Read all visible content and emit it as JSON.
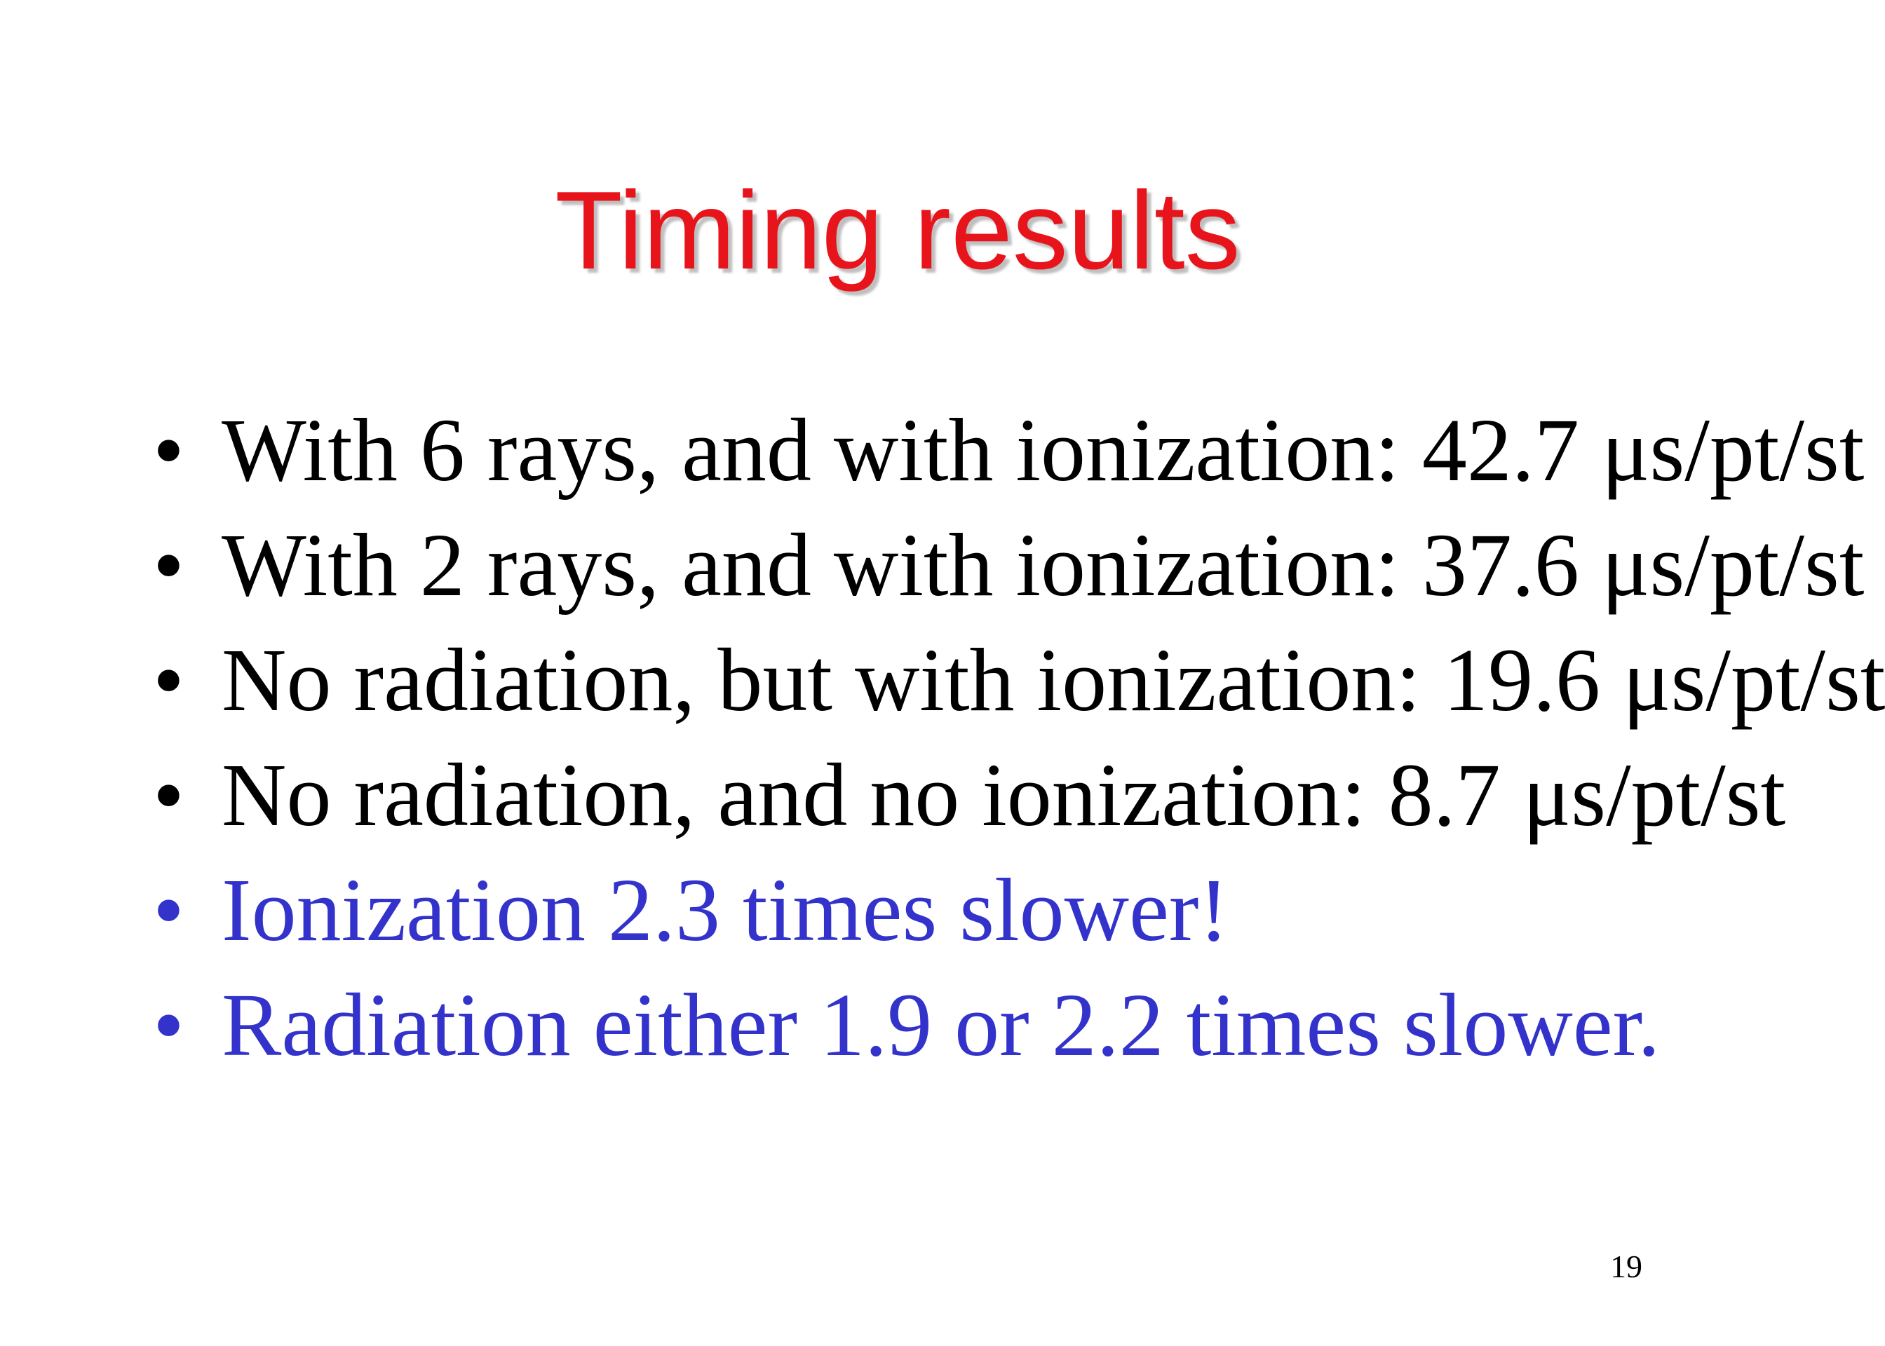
{
  "title": "Timing results",
  "bullets": [
    {
      "text": "With 6 rays, and with ionization: 42.7 μs/pt/st",
      "color": "#000000"
    },
    {
      "text": "With 2 rays, and with ionization: 37.6 μs/pt/st",
      "color": "#000000"
    },
    {
      "text": "No radiation, but with ionization: 19.6 μs/pt/st",
      "color": "#000000"
    },
    {
      "text": "No radiation, and no ionization: 8.7 μs/pt/st",
      "color": "#000000"
    },
    {
      "text": "Ionization 2.3 times slower!",
      "color": "#3333cc"
    },
    {
      "text": "Radiation either 1.9 or 2.2 times slower.",
      "color": "#3333cc"
    }
  ],
  "page_number": "19"
}
